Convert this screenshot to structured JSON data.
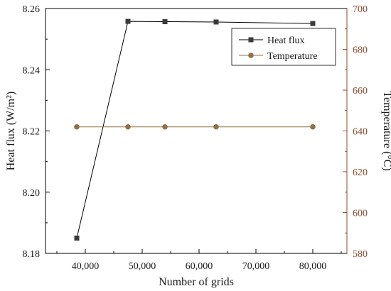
{
  "chart_data": {
    "type": "line",
    "x": [
      38500,
      47500,
      54000,
      63000,
      80000
    ],
    "xlabel": "Number of grids",
    "xlim": [
      33000,
      86000
    ],
    "xticks": [
      40000,
      50000,
      60000,
      70000,
      80000
    ],
    "xtick_labels": [
      "40,000",
      "50,000",
      "60,000",
      "70,000",
      "80,000"
    ],
    "grid": false,
    "legend_position": "top-right",
    "series": [
      {
        "name": "Heat flux",
        "axis": "left",
        "marker": "square",
        "color": "#000000",
        "marker_color": "#3a3a3a",
        "values": [
          8.185,
          8.2558,
          8.2557,
          8.2556,
          8.2551
        ]
      },
      {
        "name": "Temperature",
        "axis": "right",
        "marker": "circle",
        "color": "#8f7147",
        "marker_color": "#8f7147",
        "values": [
          642,
          642,
          642,
          642,
          642
        ]
      }
    ],
    "y_left": {
      "label": "Heat flux (W/m²)",
      "lim": [
        8.18,
        8.26
      ],
      "ticks": [
        8.18,
        8.2,
        8.22,
        8.24,
        8.26
      ],
      "tick_labels": [
        "8.18",
        "8.20",
        "8.22",
        "8.24",
        "8.26"
      ],
      "color": "#000000"
    },
    "y_right": {
      "label": "Temperature (°C)",
      "lim": [
        580,
        700
      ],
      "ticks": [
        580,
        600,
        620,
        640,
        660,
        680,
        700
      ],
      "tick_labels": [
        "580",
        "600",
        "620",
        "640",
        "660",
        "680",
        "700"
      ],
      "color": "#8b4a2e"
    }
  }
}
